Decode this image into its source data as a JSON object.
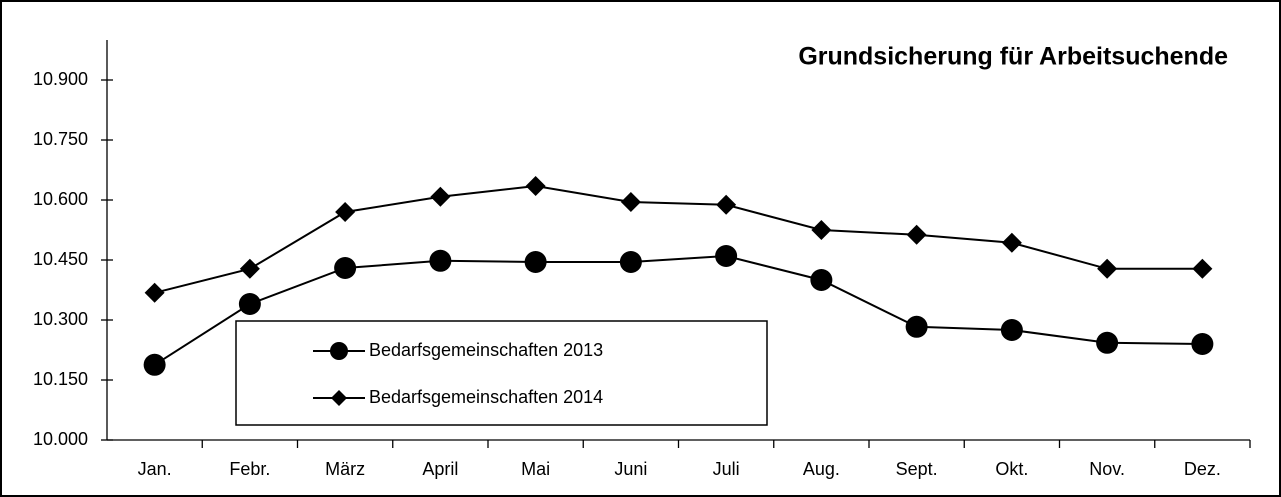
{
  "chart_data": {
    "type": "line",
    "title": "Grundsicherung für Arbeitsuchende",
    "categories": [
      "Jan.",
      "Febr.",
      "März",
      "April",
      "Mai",
      "Juni",
      "Juli",
      "Aug.",
      "Sept.",
      "Okt.",
      "Nov.",
      "Dez."
    ],
    "series": [
      {
        "name": "Bedarfsgemeinschaften 2013",
        "color": "#000000",
        "marker": "circle",
        "values": [
          10188,
          10340,
          10430,
          10448,
          10445,
          10445,
          10460,
          10400,
          10283,
          10275,
          10243,
          10240
        ]
      },
      {
        "name": "Bedarfsgemeinschaften 2014",
        "color": "#000000",
        "marker": "diamond",
        "values": [
          10368,
          10428,
          10570,
          10608,
          10635,
          10595,
          10588,
          10525,
          10513,
          10493,
          10428,
          10428
        ]
      }
    ],
    "ylim": [
      10000,
      11000
    ],
    "yticks": [
      {
        "value": 10000,
        "label": "10.000"
      },
      {
        "value": 10150,
        "label": "10.150"
      },
      {
        "value": 10300,
        "label": "10.300"
      },
      {
        "value": 10450,
        "label": "10.450"
      },
      {
        "value": 10600,
        "label": "10.600"
      },
      {
        "value": 10750,
        "label": "10.750"
      },
      {
        "value": 10900,
        "label": "10.900"
      }
    ],
    "grid": false
  }
}
